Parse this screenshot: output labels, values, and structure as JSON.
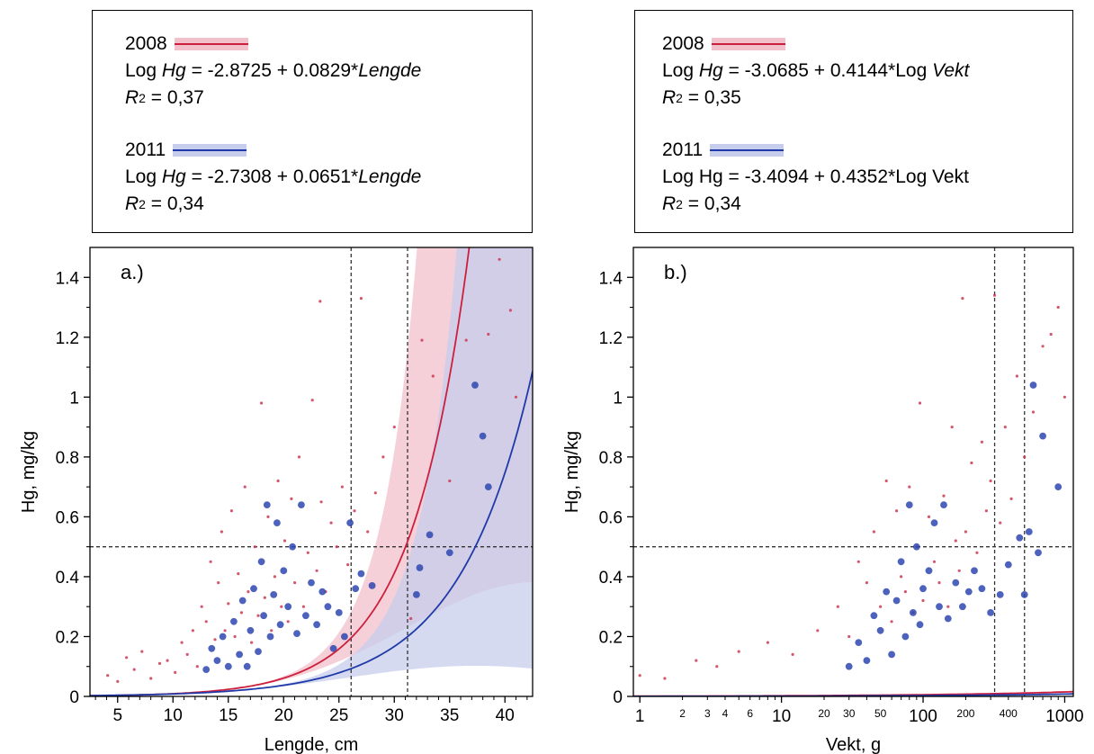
{
  "legends": [
    {
      "entries": [
        {
          "year": "2008",
          "color": "#cc1f3d",
          "band": "#f2c0cb",
          "eq_pre": "Log ",
          "eq_var": "Hg",
          "eq_mid": " = -2.8725 + 0.0829*",
          "eq_x": "Lengde",
          "r2_label": "R",
          "r2_sup": "2",
          "r2_value": " = 0,37"
        },
        {
          "year": "2011",
          "color": "#1f3aa8",
          "band": "#c7cdec",
          "eq_pre": "Log ",
          "eq_var": "Hg",
          "eq_mid": " = -2.7308 + 0.0651*",
          "eq_x": "Lengde",
          "r2_label": "R",
          "r2_sup": "2",
          "r2_value": " = 0,34"
        }
      ]
    },
    {
      "entries": [
        {
          "year": "2008",
          "color": "#cc1f3d",
          "band": "#f2c0cb",
          "eq_pre": "Log ",
          "eq_var": "Hg",
          "eq_mid": " = -3.0685 + 0.4144*Log ",
          "eq_x": "Vekt",
          "r2_label": "R",
          "r2_sup": "2",
          "r2_value": " = 0,35"
        },
        {
          "year": "2011",
          "color": "#1f3aa8",
          "band": "#c7cdec",
          "eq_pre": "Log Hg",
          "eq_var": "",
          "eq_mid": " = -3.4094 + 0.4352*Log Vekt",
          "eq_x": "",
          "r2_label": "R",
          "r2_sup": "2",
          "r2_value": " = 0,34"
        }
      ]
    }
  ],
  "chart_data": [
    {
      "type": "scatter",
      "panel_label": "a.)",
      "xlabel": "Lengde, cm",
      "ylabel": "Hg, mg/kg",
      "xscale": "linear",
      "xlim": [
        2.5,
        42.5
      ],
      "ylim": [
        0,
        1.5
      ],
      "x_ticks": [
        5,
        10,
        15,
        20,
        25,
        30,
        35,
        40
      ],
      "x_tick_labels": [
        "5",
        "10",
        "15",
        "20",
        "25",
        "30",
        "35",
        "40"
      ],
      "y_ticks": [
        0,
        0.2,
        0.4,
        0.6,
        0.8,
        1,
        1.2,
        1.4
      ],
      "y_tick_labels": [
        "0",
        "0.2",
        "0.4",
        "0.6",
        "0.8",
        "1",
        "1.2",
        "1.4"
      ],
      "reference_lines": {
        "hg_limit": 0.5,
        "x_dashed": [
          26.1,
          31.2
        ]
      },
      "series": [
        {
          "name": "2008",
          "fit": {
            "intercept": -2.8725,
            "slope": 0.0829,
            "predictor": "x"
          },
          "points": [
            [
              4.1,
              0.07
            ],
            [
              5,
              0.05
            ],
            [
              5.8,
              0.13
            ],
            [
              6.5,
              0.09
            ],
            [
              7.2,
              0.15
            ],
            [
              8,
              0.06
            ],
            [
              8.8,
              0.11
            ],
            [
              9.5,
              0.12
            ],
            [
              10.2,
              0.08
            ],
            [
              10.8,
              0.18
            ],
            [
              11.3,
              0.14
            ],
            [
              11.8,
              0.22
            ],
            [
              12.2,
              0.1
            ],
            [
              12.6,
              0.3
            ],
            [
              13,
              0.25
            ],
            [
              13.4,
              0.45
            ],
            [
              13.8,
              0.19
            ],
            [
              14.1,
              0.38
            ],
            [
              14.4,
              0.55
            ],
            [
              14.7,
              0.22
            ],
            [
              15,
              0.31
            ],
            [
              15.3,
              0.62
            ],
            [
              15.6,
              0.2
            ],
            [
              15.9,
              0.41
            ],
            [
              16.2,
              0.28
            ],
            [
              16.5,
              0.7
            ],
            [
              16.8,
              0.35
            ],
            [
              17.1,
              0.18
            ],
            [
              17.4,
              0.5
            ],
            [
              17.7,
              0.27
            ],
            [
              18,
              0.98
            ],
            [
              18.3,
              0.33
            ],
            [
              18.6,
              0.6
            ],
            [
              18.9,
              0.22
            ],
            [
              19.2,
              0.4
            ],
            [
              19.5,
              0.72
            ],
            [
              19.8,
              0.3
            ],
            [
              20.1,
              0.52
            ],
            [
              20.4,
              0.25
            ],
            [
              20.7,
              0.66
            ],
            [
              21,
              0.38
            ],
            [
              21.4,
              0.8
            ],
            [
              21.8,
              0.3
            ],
            [
              22.2,
              0.48
            ],
            [
              22.6,
              0.99
            ],
            [
              23,
              0.42
            ],
            [
              23.4,
              0.65
            ],
            [
              23.8,
              0.35
            ],
            [
              24.3,
              0.58
            ],
            [
              24.8,
              0.5
            ],
            [
              25.3,
              0.7
            ],
            [
              25.8,
              0.44
            ],
            [
              26.4,
              0.62
            ],
            [
              27,
              1.33
            ],
            [
              23.3,
              1.32
            ],
            [
              27.6,
              0.55
            ],
            [
              28.3,
              0.68
            ],
            [
              29,
              0.8
            ],
            [
              30,
              0.9
            ],
            [
              31.5,
              0.26
            ],
            [
              32.5,
              1.19
            ],
            [
              33.5,
              1.07
            ],
            [
              35,
              0.72
            ],
            [
              36.5,
              1.19
            ],
            [
              38.5,
              1.21
            ],
            [
              39.5,
              1.46
            ],
            [
              40.5,
              1.29
            ],
            [
              41,
              1.0
            ]
          ]
        },
        {
          "name": "2011",
          "fit": {
            "intercept": -2.7308,
            "slope": 0.0651,
            "predictor": "x"
          },
          "points": [
            [
              13,
              0.09
            ],
            [
              13.5,
              0.16
            ],
            [
              14,
              0.12
            ],
            [
              14.5,
              0.2
            ],
            [
              15,
              0.1
            ],
            [
              15.5,
              0.25
            ],
            [
              16,
              0.14
            ],
            [
              16.3,
              0.32
            ],
            [
              16.7,
              0.1
            ],
            [
              17,
              0.22
            ],
            [
              17.3,
              0.36
            ],
            [
              17.7,
              0.15
            ],
            [
              18,
              0.45
            ],
            [
              18.2,
              0.27
            ],
            [
              18.5,
              0.64
            ],
            [
              18.8,
              0.2
            ],
            [
              19.1,
              0.34
            ],
            [
              19.4,
              0.58
            ],
            [
              19.7,
              0.24
            ],
            [
              20,
              0.42
            ],
            [
              20.4,
              0.3
            ],
            [
              20.8,
              0.5
            ],
            [
              21.2,
              0.21
            ],
            [
              21.6,
              0.64
            ],
            [
              22,
              0.27
            ],
            [
              22.5,
              0.38
            ],
            [
              23,
              0.24
            ],
            [
              23.5,
              0.35
            ],
            [
              24,
              0.3
            ],
            [
              24.5,
              0.16
            ],
            [
              25,
              0.28
            ],
            [
              25.5,
              0.2
            ],
            [
              26,
              0.58
            ],
            [
              26.5,
              0.36
            ],
            [
              27,
              0.41
            ],
            [
              28,
              0.37
            ],
            [
              32,
              0.34
            ],
            [
              32.3,
              0.43
            ],
            [
              33.2,
              0.54
            ],
            [
              35,
              0.48
            ],
            [
              37.3,
              1.04
            ],
            [
              38,
              0.87
            ],
            [
              38.5,
              0.7
            ]
          ]
        }
      ]
    },
    {
      "type": "scatter",
      "panel_label": "b.)",
      "xlabel": "Vekt, g",
      "ylabel": "Hg, mg/kg",
      "xscale": "log",
      "xlim": [
        0.9,
        1150
      ],
      "ylim": [
        0,
        1.5
      ],
      "x_ticks_major": [
        1,
        10,
        100,
        1000
      ],
      "x_tick_labels_major": [
        "1",
        "10",
        "100",
        "1000"
      ],
      "x_ticks_minor": [
        2,
        3,
        4,
        6,
        20,
        30,
        50,
        200,
        400
      ],
      "x_tick_labels_minor": [
        "2",
        "3",
        "4",
        "6",
        "20",
        "30",
        "50",
        "200",
        "400"
      ],
      "y_ticks": [
        0,
        0.2,
        0.4,
        0.6,
        0.8,
        1,
        1.2,
        1.4
      ],
      "y_tick_labels": [
        "0",
        "0.2",
        "0.4",
        "0.6",
        "0.8",
        "1",
        "1.2",
        "1.4"
      ],
      "reference_lines": {
        "hg_limit": 0.5,
        "x_dashed": [
          320,
          520
        ]
      },
      "series": [
        {
          "name": "2008",
          "fit": {
            "intercept": -3.0685,
            "slope": 0.4144,
            "predictor": "log10x"
          },
          "points": [
            [
              1,
              0.07
            ],
            [
              1.5,
              0.06
            ],
            [
              2.5,
              0.12
            ],
            [
              3.5,
              0.1
            ],
            [
              5,
              0.15
            ],
            [
              8,
              0.18
            ],
            [
              12,
              0.14
            ],
            [
              18,
              0.22
            ],
            [
              25,
              0.3
            ],
            [
              30,
              0.2
            ],
            [
              35,
              0.45
            ],
            [
              40,
              0.38
            ],
            [
              45,
              0.55
            ],
            [
              50,
              0.3
            ],
            [
              55,
              0.72
            ],
            [
              60,
              0.25
            ],
            [
              65,
              0.62
            ],
            [
              70,
              0.4
            ],
            [
              75,
              0.35
            ],
            [
              80,
              0.7
            ],
            [
              85,
              0.28
            ],
            [
              90,
              0.5
            ],
            [
              95,
              0.98
            ],
            [
              100,
              0.32
            ],
            [
              110,
              0.6
            ],
            [
              120,
              0.45
            ],
            [
              130,
              0.38
            ],
            [
              140,
              0.67
            ],
            [
              150,
              0.3
            ],
            [
              160,
              0.9
            ],
            [
              170,
              0.52
            ],
            [
              180,
              0.42
            ],
            [
              190,
              1.33
            ],
            [
              200,
              0.55
            ],
            [
              220,
              0.78
            ],
            [
              240,
              0.48
            ],
            [
              260,
              0.85
            ],
            [
              280,
              0.62
            ],
            [
              300,
              0.72
            ],
            [
              320,
              1.34
            ],
            [
              350,
              0.58
            ],
            [
              380,
              0.9
            ],
            [
              420,
              0.66
            ],
            [
              460,
              1.07
            ],
            [
              520,
              0.8
            ],
            [
              600,
              0.95
            ],
            [
              700,
              1.17
            ],
            [
              800,
              1.21
            ],
            [
              900,
              1.3
            ],
            [
              1000,
              1.0
            ]
          ]
        },
        {
          "name": "2011",
          "fit": {
            "intercept": -3.4094,
            "slope": 0.4352,
            "predictor": "log10x"
          },
          "points": [
            [
              30,
              0.1
            ],
            [
              35,
              0.18
            ],
            [
              40,
              0.12
            ],
            [
              45,
              0.27
            ],
            [
              50,
              0.22
            ],
            [
              55,
              0.35
            ],
            [
              60,
              0.14
            ],
            [
              65,
              0.32
            ],
            [
              70,
              0.45
            ],
            [
              75,
              0.2
            ],
            [
              80,
              0.64
            ],
            [
              85,
              0.28
            ],
            [
              90,
              0.5
            ],
            [
              95,
              0.24
            ],
            [
              100,
              0.36
            ],
            [
              110,
              0.42
            ],
            [
              120,
              0.58
            ],
            [
              130,
              0.3
            ],
            [
              140,
              0.64
            ],
            [
              150,
              0.26
            ],
            [
              170,
              0.38
            ],
            [
              190,
              0.3
            ],
            [
              210,
              0.35
            ],
            [
              230,
              0.42
            ],
            [
              260,
              0.36
            ],
            [
              300,
              0.28
            ],
            [
              350,
              0.34
            ],
            [
              400,
              0.44
            ],
            [
              480,
              0.53
            ],
            [
              520,
              0.34
            ],
            [
              560,
              0.55
            ],
            [
              600,
              1.04
            ],
            [
              650,
              0.48
            ],
            [
              700,
              0.87
            ],
            [
              900,
              0.7
            ]
          ]
        }
      ]
    }
  ]
}
